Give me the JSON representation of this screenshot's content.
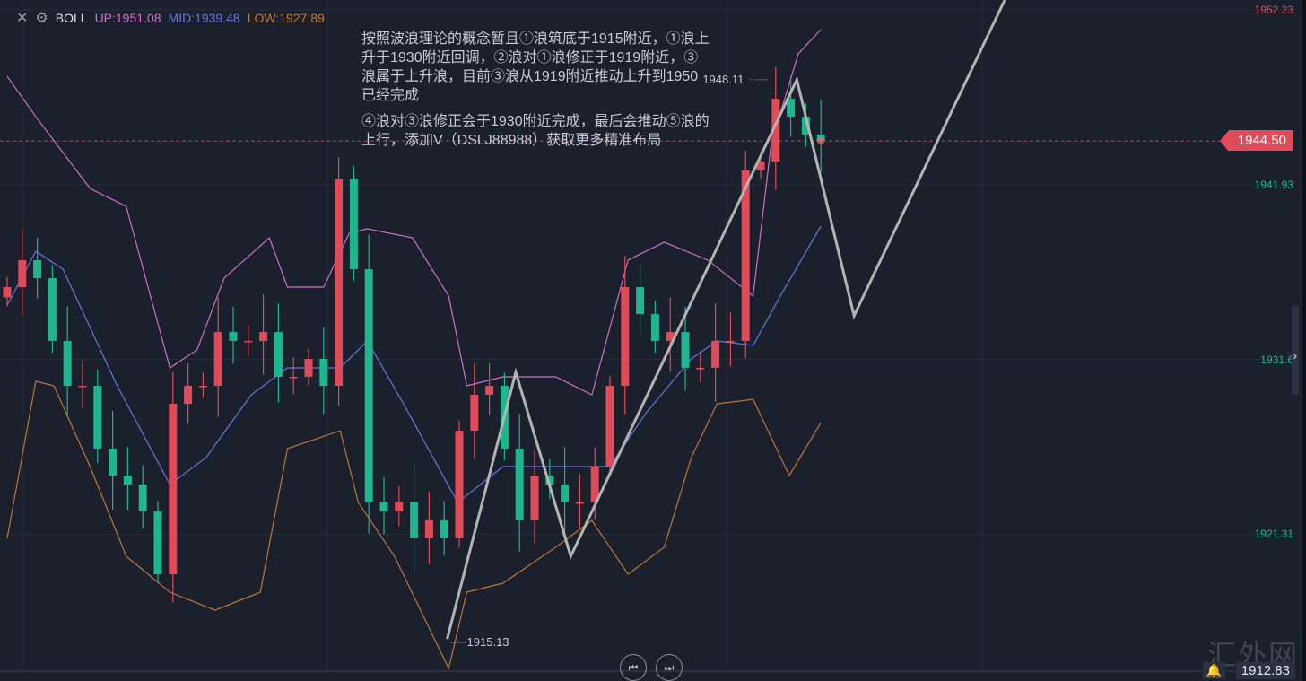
{
  "legend": {
    "indicator": "BOLL",
    "up": "UP:1951.08",
    "mid": "MID:1939.48",
    "low": "LOW:1927.89",
    "close_icon": "close-icon",
    "settings_icon": "gear-icon"
  },
  "annotation": {
    "para1": "按照波浪理论的概念暂且①浪筑底于1915附近，①浪上升于1930附近回调，②浪对①浪修正于1919附近，③浪属于上升浪，目前③浪从1919附近推动上升到1950已经完成",
    "para2": "④浪对③浪修正会于1930附近完成，最后会推动⑤浪的上行，添加V（DSLJ88988）获取更多精准布局"
  },
  "current_price": "1944.50",
  "bottom_price": "1912.83",
  "watermark": "汇外网",
  "colors": {
    "background": "#1a202c",
    "up": "#e04b5a",
    "down": "#1fb58f",
    "upper": "#d070c8",
    "mid": "#6677e0",
    "lower": "#c07838",
    "wave": "#b4b4b4"
  },
  "chart_data": {
    "type": "candlestick",
    "y_axis_ticks": [
      1952.23,
      1941.93,
      1931.62,
      1921.31
    ],
    "y_axis_tick_labels": [
      "1952.23",
      "1941.93",
      "1931.6",
      "1921.31"
    ],
    "closes": [
      1935.88,
      1937.47,
      1936.41,
      1932.71,
      1930.06,
      1930.06,
      1926.36,
      1924.77,
      1924.24,
      1922.66,
      1918.95,
      1929.0,
      1930.06,
      1930.06,
      1933.23,
      1932.71,
      1932.71,
      1933.23,
      1930.59,
      1930.59,
      1931.65,
      1930.06,
      1942.23,
      1936.94,
      1923.18,
      1922.66,
      1923.18,
      1921.07,
      1922.12,
      1921.07,
      1927.41,
      1929.53,
      1930.06,
      1926.36,
      1922.12,
      1924.77,
      1924.24,
      1923.18,
      1923.18,
      1925.3,
      1930.06,
      1935.88,
      1934.29,
      1932.71,
      1933.23,
      1931.12,
      1931.12,
      1932.71,
      1932.71,
      1942.76,
      1943.29,
      1946.99,
      1945.93,
      1944.88,
      1944.5
    ],
    "boll_upper": [
      [
        0,
        1948.31
      ],
      [
        1.9,
        1945.93
      ],
      [
        5.5,
        1941.7
      ],
      [
        7.9,
        1940.64
      ],
      [
        10.8,
        1931.12
      ],
      [
        12.6,
        1932.18
      ],
      [
        14.4,
        1936.41
      ],
      [
        17.4,
        1938.79
      ],
      [
        18.6,
        1935.88
      ],
      [
        21,
        1935.88
      ],
      [
        22.7,
        1939.06
      ],
      [
        23.9,
        1939.32
      ],
      [
        26.9,
        1938.79
      ],
      [
        29.3,
        1935.35
      ],
      [
        30.5,
        1930.06
      ],
      [
        32.9,
        1930.59
      ],
      [
        36.4,
        1930.59
      ],
      [
        38.8,
        1929.53
      ],
      [
        41.2,
        1937.47
      ],
      [
        43.6,
        1938.53
      ],
      [
        46.5,
        1937.47
      ],
      [
        49.5,
        1935.35
      ],
      [
        50.7,
        1944.35
      ],
      [
        52.5,
        1949.64
      ],
      [
        54,
        1951.08
      ]
    ],
    "boll_mid": [
      [
        0,
        1934.82
      ],
      [
        1.9,
        1938.0
      ],
      [
        3.7,
        1936.94
      ],
      [
        7.3,
        1930.06
      ],
      [
        10.8,
        1924.24
      ],
      [
        13.2,
        1925.83
      ],
      [
        16.2,
        1929.53
      ],
      [
        18.6,
        1931.12
      ],
      [
        22.1,
        1931.12
      ],
      [
        23.9,
        1932.71
      ],
      [
        26.3,
        1929.0
      ],
      [
        29.9,
        1923.18
      ],
      [
        32.9,
        1925.3
      ],
      [
        36.4,
        1925.3
      ],
      [
        40,
        1925.3
      ],
      [
        42.4,
        1928.47
      ],
      [
        45.4,
        1931.65
      ],
      [
        47.1,
        1932.71
      ],
      [
        49.5,
        1932.44
      ],
      [
        51.3,
        1935.35
      ],
      [
        54,
        1939.48
      ]
    ],
    "boll_lower": [
      [
        0,
        1921.07
      ],
      [
        1.9,
        1930.33
      ],
      [
        3.1,
        1930.06
      ],
      [
        5.5,
        1925.3
      ],
      [
        7.9,
        1920.01
      ],
      [
        10.8,
        1917.89
      ],
      [
        13.8,
        1916.83
      ],
      [
        16.8,
        1917.89
      ],
      [
        18.6,
        1926.36
      ],
      [
        22.1,
        1927.41
      ],
      [
        23.3,
        1923.18
      ],
      [
        25.7,
        1920.01
      ],
      [
        29.3,
        1913.39
      ],
      [
        30.5,
        1917.89
      ],
      [
        32.9,
        1918.42
      ],
      [
        36.4,
        1920.54
      ],
      [
        38.8,
        1922.12
      ],
      [
        41.2,
        1918.95
      ],
      [
        43.6,
        1920.54
      ],
      [
        45.4,
        1925.83
      ],
      [
        47.1,
        1929.0
      ],
      [
        49.5,
        1929.26
      ],
      [
        51.9,
        1924.77
      ],
      [
        54,
        1927.89
      ]
    ],
    "wave_lines": [
      [
        29.2,
        1915.13
      ],
      [
        33.75,
        1930.86
      ],
      [
        37.4,
        1920.01
      ],
      [
        52.4,
        1948.11
      ],
      [
        56.2,
        1934.19
      ],
      [
        66.2,
        1952.81
      ]
    ],
    "high_label": "1948.11",
    "low_label": "1915.13",
    "last_price": 1944.5
  }
}
